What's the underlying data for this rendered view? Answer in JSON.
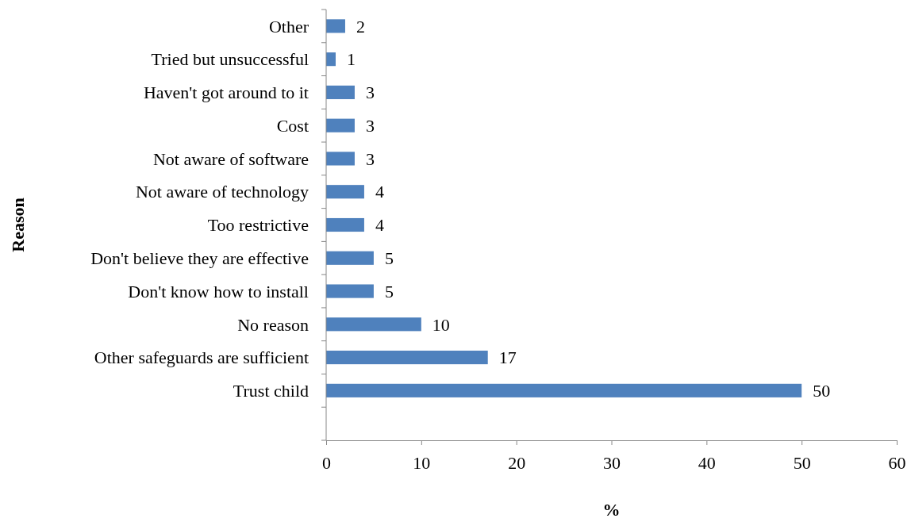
{
  "chart_data": {
    "type": "bar",
    "orientation": "horizontal",
    "xlabel": "%",
    "ylabel": "Reason",
    "categories": [
      "Other",
      "Tried but unsuccessful",
      "Haven't got around to it",
      "Cost",
      "Not aware of software",
      "Not aware of technology",
      "Too restrictive",
      "Don't believe they are effective",
      "Don't know how to install",
      "No reason",
      "Other safeguards are sufficient",
      "Trust child",
      null
    ],
    "values": [
      2,
      1,
      3,
      3,
      3,
      4,
      4,
      5,
      5,
      10,
      17,
      50,
      null
    ],
    "color": "#4f81bd",
    "xlim": [
      0,
      60
    ],
    "xticks": [
      0,
      10,
      20,
      30,
      40,
      50,
      60
    ],
    "data_labels": true,
    "grid": false
  }
}
